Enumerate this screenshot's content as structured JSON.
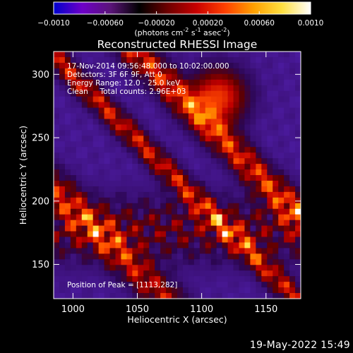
{
  "chart_data": {
    "type": "heatmap",
    "title": "Reconstructed RHESSI Image",
    "xlabel": "Heliocentric X (arcsec)",
    "ylabel": "Heliocentric Y (arcsec)",
    "xlim": [
      985,
      1177
    ],
    "ylim": [
      123,
      318
    ],
    "x_ticks": [
      1000,
      1050,
      1100,
      1150
    ],
    "y_ticks": [
      150,
      200,
      250,
      300
    ],
    "colorbar": {
      "label_parts": [
        "(photons cm",
        "-2",
        " s",
        "-1",
        " asec",
        "-2",
        ")"
      ],
      "range": [
        -0.001,
        0.001
      ],
      "ticks": [
        -0.001,
        -0.0006,
        -0.0002,
        0.0002,
        0.0006,
        0.001
      ],
      "tick_labels": [
        "−0.0010",
        "−0.00060",
        "−0.00020",
        "0.00020",
        "0.00060",
        "0.0010"
      ],
      "colors": [
        "#0000cc",
        "#6e00c8",
        "#5a1478",
        "#000000",
        "#6e0000",
        "#c80000",
        "#ff4000",
        "#ffa000",
        "#ffe040",
        "#ffffff"
      ]
    },
    "annotations": [
      "17-Nov-2014 09:56:48.000 to 10:02:00.000",
      "Detectors: 3F 6F 9F, Att 0",
      "Energy Range: 12.0 - 25.0 keV",
      "Clean     Total counts: 2.96E+03"
    ],
    "peak_label": "Position of Peak = [1113,282]",
    "peak": [
      1113,
      282
    ],
    "grid": false
  },
  "footer_timestamp": "19-May-2022 15:49"
}
